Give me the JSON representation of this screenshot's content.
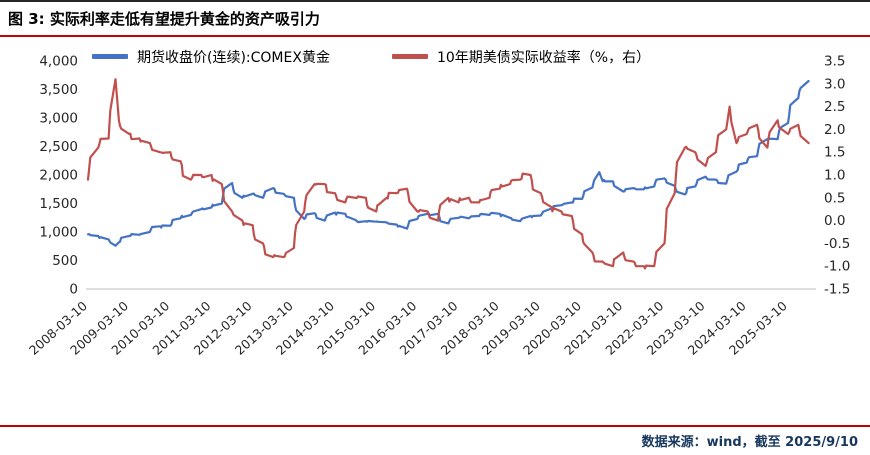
{
  "figure": {
    "title": "图 3: 实际利率走低有望提升黄金的资产吸引力",
    "source_note": "数据来源：wind，截至 2025/9/10"
  },
  "chart_data": {
    "type": "line",
    "title": "实际利率走低有望提升黄金的资产吸引力",
    "legend_position": "top",
    "grid": "off",
    "left_axis": {
      "min": 0,
      "max": 4000,
      "ticks": [
        {
          "label": "0",
          "value": 0
        },
        {
          "label": "500",
          "value": 500
        },
        {
          "label": "1,000",
          "value": 1000
        },
        {
          "label": "1,500",
          "value": 1500
        },
        {
          "label": "2,000",
          "value": 2000
        },
        {
          "label": "2,500",
          "value": 2500
        },
        {
          "label": "3,000",
          "value": 3000
        },
        {
          "label": "3,500",
          "value": 3500
        },
        {
          "label": "4,000",
          "value": 4000
        }
      ]
    },
    "right_axis": {
      "min": -1.5,
      "max": 3.5,
      "ticks": [
        {
          "label": "-1.5",
          "value": -1.5
        },
        {
          "label": "-1.0",
          "value": -1.0
        },
        {
          "label": "-0.5",
          "value": -0.5
        },
        {
          "label": "0.0",
          "value": 0.0
        },
        {
          "label": "0.5",
          "value": 0.5
        },
        {
          "label": "1.0",
          "value": 1.0
        },
        {
          "label": "1.5",
          "value": 1.5
        },
        {
          "label": "2.0",
          "value": 2.0
        },
        {
          "label": "2.5",
          "value": 2.5
        },
        {
          "label": "3.0",
          "value": 3.0
        },
        {
          "label": "3.5",
          "value": 3.5
        }
      ]
    },
    "x_labels": [
      "2008-03-10",
      "2009-03-10",
      "2010-03-10",
      "2011-03-10",
      "2012-03-10",
      "2013-03-10",
      "2014-03-10",
      "2015-03-10",
      "2016-03-10",
      "2017-03-10",
      "2018-03-10",
      "2019-03-10",
      "2020-03-10",
      "2021-03-10",
      "2022-03-10",
      "2023-03-10",
      "2024-03-10",
      "2025-03-10"
    ],
    "x_range": [
      "2008-03",
      "2025-10"
    ],
    "series": [
      {
        "name": "期货收盘价(连续):COMEX黄金",
        "axis": "left",
        "color": "#4472c4",
        "points": [
          [
            "2008-03",
            960
          ],
          [
            "2008-06",
            930
          ],
          [
            "2008-09",
            870
          ],
          [
            "2008-11",
            760
          ],
          [
            "2008-12",
            820
          ],
          [
            "2009-03",
            930
          ],
          [
            "2009-06",
            950
          ],
          [
            "2009-09",
            1000
          ],
          [
            "2009-12",
            1100
          ],
          [
            "2010-03",
            1110
          ],
          [
            "2010-06",
            1240
          ],
          [
            "2010-09",
            1300
          ],
          [
            "2010-12",
            1400
          ],
          [
            "2011-03",
            1430
          ],
          [
            "2011-06",
            1500
          ],
          [
            "2011-09",
            1860
          ],
          [
            "2011-12",
            1600
          ],
          [
            "2012-03",
            1670
          ],
          [
            "2012-06",
            1600
          ],
          [
            "2012-09",
            1770
          ],
          [
            "2012-12",
            1670
          ],
          [
            "2013-03",
            1600
          ],
          [
            "2013-06",
            1230
          ],
          [
            "2013-09",
            1330
          ],
          [
            "2013-12",
            1200
          ],
          [
            "2014-03",
            1340
          ],
          [
            "2014-06",
            1320
          ],
          [
            "2014-09",
            1210
          ],
          [
            "2014-12",
            1190
          ],
          [
            "2015-03",
            1180
          ],
          [
            "2015-06",
            1170
          ],
          [
            "2015-09",
            1130
          ],
          [
            "2015-12",
            1060
          ],
          [
            "2016-03",
            1230
          ],
          [
            "2016-06",
            1320
          ],
          [
            "2016-09",
            1320
          ],
          [
            "2016-12",
            1150
          ],
          [
            "2017-03",
            1250
          ],
          [
            "2017-06",
            1240
          ],
          [
            "2017-09",
            1280
          ],
          [
            "2017-12",
            1300
          ],
          [
            "2018-03",
            1320
          ],
          [
            "2018-06",
            1250
          ],
          [
            "2018-09",
            1190
          ],
          [
            "2018-12",
            1280
          ],
          [
            "2019-03",
            1290
          ],
          [
            "2019-06",
            1410
          ],
          [
            "2019-09",
            1470
          ],
          [
            "2019-12",
            1520
          ],
          [
            "2020-03",
            1580
          ],
          [
            "2020-06",
            1780
          ],
          [
            "2020-08",
            2050
          ],
          [
            "2020-09",
            1890
          ],
          [
            "2020-12",
            1890
          ],
          [
            "2021-03",
            1710
          ],
          [
            "2021-06",
            1770
          ],
          [
            "2021-09",
            1750
          ],
          [
            "2021-12",
            1800
          ],
          [
            "2022-03",
            1940
          ],
          [
            "2022-06",
            1810
          ],
          [
            "2022-09",
            1660
          ],
          [
            "2022-12",
            1800
          ],
          [
            "2023-03",
            1970
          ],
          [
            "2023-06",
            1920
          ],
          [
            "2023-09",
            1850
          ],
          [
            "2023-12",
            2060
          ],
          [
            "2024-03",
            2220
          ],
          [
            "2024-06",
            2330
          ],
          [
            "2024-09",
            2630
          ],
          [
            "2024-12",
            2630
          ],
          [
            "2025-03",
            2910
          ],
          [
            "2025-06",
            3350
          ],
          [
            "2025-09",
            3650
          ]
        ]
      },
      {
        "name": "10年期美债实际收益率（%，右）",
        "axis": "right",
        "color": "#c0504d",
        "points": [
          [
            "2008-03",
            0.9
          ],
          [
            "2008-06",
            1.6
          ],
          [
            "2008-09",
            1.8
          ],
          [
            "2008-11",
            3.1
          ],
          [
            "2008-12",
            2.2
          ],
          [
            "2009-03",
            1.9
          ],
          [
            "2009-06",
            1.8
          ],
          [
            "2009-09",
            1.7
          ],
          [
            "2009-12",
            1.5
          ],
          [
            "2010-03",
            1.5
          ],
          [
            "2010-06",
            1.3
          ],
          [
            "2010-09",
            0.9
          ],
          [
            "2010-12",
            1.0
          ],
          [
            "2011-03",
            1.0
          ],
          [
            "2011-06",
            0.8
          ],
          [
            "2011-09",
            0.2
          ],
          [
            "2011-12",
            0.0
          ],
          [
            "2012-03",
            -0.1
          ],
          [
            "2012-06",
            -0.5
          ],
          [
            "2012-09",
            -0.8
          ],
          [
            "2012-12",
            -0.8
          ],
          [
            "2013-03",
            -0.6
          ],
          [
            "2013-06",
            0.2
          ],
          [
            "2013-09",
            0.8
          ],
          [
            "2013-12",
            0.8
          ],
          [
            "2014-03",
            0.6
          ],
          [
            "2014-06",
            0.4
          ],
          [
            "2014-09",
            0.5
          ],
          [
            "2014-12",
            0.5
          ],
          [
            "2015-03",
            0.2
          ],
          [
            "2015-06",
            0.5
          ],
          [
            "2015-09",
            0.6
          ],
          [
            "2015-12",
            0.7
          ],
          [
            "2016-03",
            0.2
          ],
          [
            "2016-06",
            0.2
          ],
          [
            "2016-09",
            0.0
          ],
          [
            "2016-12",
            0.5
          ],
          [
            "2017-03",
            0.4
          ],
          [
            "2017-06",
            0.5
          ],
          [
            "2017-09",
            0.4
          ],
          [
            "2017-12",
            0.5
          ],
          [
            "2018-03",
            0.7
          ],
          [
            "2018-06",
            0.8
          ],
          [
            "2018-09",
            0.9
          ],
          [
            "2018-12",
            1.0
          ],
          [
            "2019-03",
            0.6
          ],
          [
            "2019-06",
            0.3
          ],
          [
            "2019-09",
            0.2
          ],
          [
            "2019-12",
            0.1
          ],
          [
            "2020-03",
            -0.3
          ],
          [
            "2020-06",
            -0.7
          ],
          [
            "2020-09",
            -0.9
          ],
          [
            "2020-12",
            -1.0
          ],
          [
            "2021-03",
            -0.7
          ],
          [
            "2021-06",
            -0.9
          ],
          [
            "2021-09",
            -1.0
          ],
          [
            "2021-12",
            -1.0
          ],
          [
            "2022-03",
            -0.5
          ],
          [
            "2022-06",
            0.6
          ],
          [
            "2022-09",
            1.6
          ],
          [
            "2022-12",
            1.5
          ],
          [
            "2023-03",
            1.2
          ],
          [
            "2023-06",
            1.5
          ],
          [
            "2023-09",
            2.0
          ],
          [
            "2023-10",
            2.5
          ],
          [
            "2023-12",
            1.7
          ],
          [
            "2024-03",
            1.9
          ],
          [
            "2024-06",
            2.1
          ],
          [
            "2024-09",
            1.6
          ],
          [
            "2024-12",
            2.2
          ],
          [
            "2025-03",
            1.9
          ],
          [
            "2025-06",
            2.1
          ],
          [
            "2025-09",
            1.7
          ]
        ]
      }
    ]
  }
}
